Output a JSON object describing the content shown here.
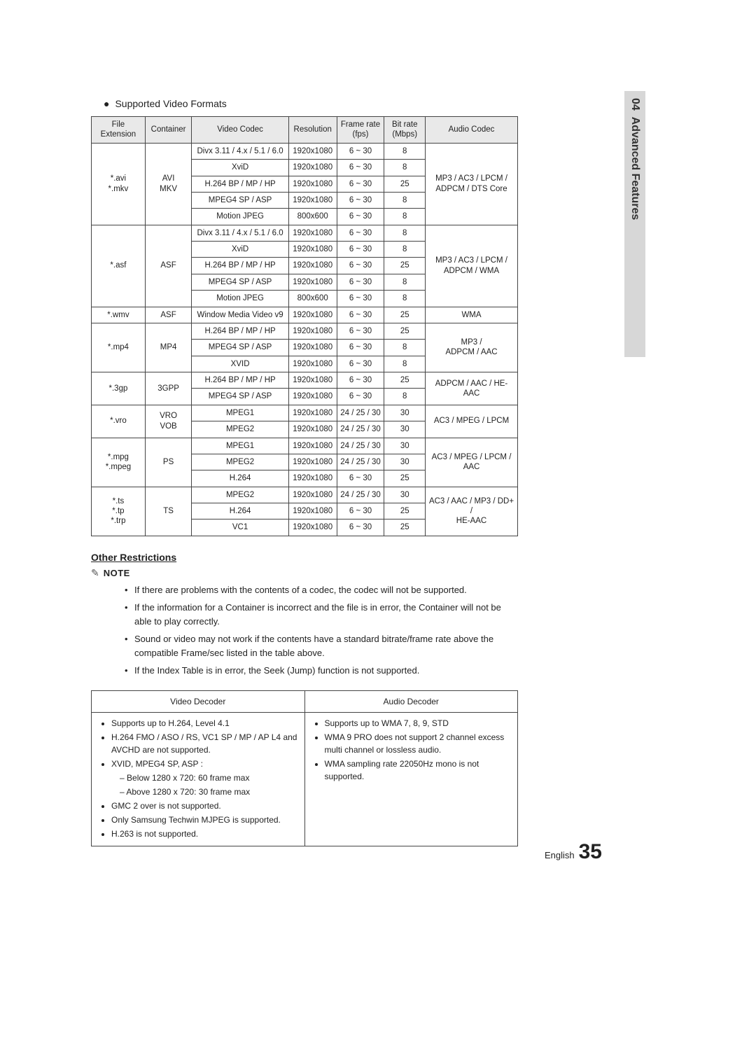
{
  "sidebar": {
    "chapter_num": "04",
    "chapter_title": "Advanced Features"
  },
  "section_title": "Supported Video Formats",
  "headers": [
    "File Extension",
    "Container",
    "Video Codec",
    "Resolution",
    "Frame rate (fps)",
    "Bit rate (Mbps)",
    "Audio Codec"
  ],
  "groups": [
    {
      "ext": "*.avi\n*.mkv",
      "cont": "AVI\nMKV",
      "rows": [
        {
          "vc": "Divx 3.11 / 4.x / 5.1 / 6.0",
          "res": "1920x1080",
          "fr": "6 ~ 30",
          "br": "8"
        },
        {
          "vc": "XviD",
          "res": "1920x1080",
          "fr": "6 ~ 30",
          "br": "8"
        },
        {
          "vc": "H.264 BP / MP / HP",
          "res": "1920x1080",
          "fr": "6 ~ 30",
          "br": "25"
        },
        {
          "vc": "MPEG4 SP / ASP",
          "res": "1920x1080",
          "fr": "6 ~ 30",
          "br": "8"
        },
        {
          "vc": "Motion JPEG",
          "res": "800x600",
          "fr": "6 ~ 30",
          "br": "8"
        }
      ],
      "audio": "MP3 / AC3 / LPCM / ADPCM / DTS Core"
    },
    {
      "ext": "*.asf",
      "cont": "ASF",
      "rows": [
        {
          "vc": "Divx 3.11 / 4.x / 5.1 / 6.0",
          "res": "1920x1080",
          "fr": "6 ~ 30",
          "br": "8"
        },
        {
          "vc": "XviD",
          "res": "1920x1080",
          "fr": "6 ~ 30",
          "br": "8"
        },
        {
          "vc": "H.264 BP / MP / HP",
          "res": "1920x1080",
          "fr": "6 ~ 30",
          "br": "25"
        },
        {
          "vc": "MPEG4 SP / ASP",
          "res": "1920x1080",
          "fr": "6 ~ 30",
          "br": "8"
        },
        {
          "vc": "Motion JPEG",
          "res": "800x600",
          "fr": "6 ~ 30",
          "br": "8"
        }
      ],
      "audio": "MP3 / AC3 / LPCM / ADPCM / WMA"
    },
    {
      "ext": "*.wmv",
      "cont": "ASF",
      "rows": [
        {
          "vc": "Window Media Video v9",
          "res": "1920x1080",
          "fr": "6 ~ 30",
          "br": "25"
        }
      ],
      "audio": "WMA"
    },
    {
      "ext": "*.mp4",
      "cont": "MP4",
      "rows": [
        {
          "vc": "H.264 BP / MP / HP",
          "res": "1920x1080",
          "fr": "6 ~ 30",
          "br": "25"
        },
        {
          "vc": "MPEG4 SP / ASP",
          "res": "1920x1080",
          "fr": "6 ~ 30",
          "br": "8"
        },
        {
          "vc": "XVID",
          "res": "1920x1080",
          "fr": "6 ~ 30",
          "br": "8"
        }
      ],
      "audio": "MP3 / ADPCM / AAC"
    },
    {
      "ext": "*.3gp",
      "cont": "3GPP",
      "rows": [
        {
          "vc": "H.264 BP / MP / HP",
          "res": "1920x1080",
          "fr": "6 ~ 30",
          "br": "25"
        },
        {
          "vc": "MPEG4 SP / ASP",
          "res": "1920x1080",
          "fr": "6 ~ 30",
          "br": "8"
        }
      ],
      "audio": "ADPCM / AAC / HE-AAC"
    },
    {
      "ext": "*.vro",
      "cont": "VRO\nVOB",
      "rows": [
        {
          "vc": "MPEG1",
          "res": "1920x1080",
          "fr": "24 / 25 / 30",
          "br": "30"
        },
        {
          "vc": "MPEG2",
          "res": "1920x1080",
          "fr": "24 / 25 / 30",
          "br": "30"
        }
      ],
      "audio": "AC3 / MPEG / LPCM"
    },
    {
      "ext": "*.mpg\n*.mpeg",
      "cont": "PS",
      "rows": [
        {
          "vc": "MPEG1",
          "res": "1920x1080",
          "fr": "24 / 25 / 30",
          "br": "30"
        },
        {
          "vc": "MPEG2",
          "res": "1920x1080",
          "fr": "24 / 25 / 30",
          "br": "30"
        },
        {
          "vc": "H.264",
          "res": "1920x1080",
          "fr": "6 ~ 30",
          "br": "25"
        }
      ],
      "audio": "AC3 / MPEG / LPCM / AAC"
    },
    {
      "ext": "*.ts\n*.tp\n*.trp",
      "cont": "TS",
      "rows": [
        {
          "vc": "MPEG2",
          "res": "1920x1080",
          "fr": "24 / 25 / 30",
          "br": "30"
        },
        {
          "vc": "H.264",
          "res": "1920x1080",
          "fr": "6 ~ 30",
          "br": "25"
        },
        {
          "vc": "VC1",
          "res": "1920x1080",
          "fr": "6 ~ 30",
          "br": "25"
        }
      ],
      "audio": "AC3 / AAC / MP3 / DD+ / HE-AAC"
    }
  ],
  "other_restrictions_title": "Other Restrictions",
  "note_label": "NOTE",
  "notes": [
    "If there are problems with the contents of a codec, the codec will not be supported.",
    "If the information for a Container is incorrect and the file is in error, the Container will not be able to play correctly.",
    "Sound or video may not work if the contents have a standard bitrate/frame rate above the compatible Frame/sec listed in the table above.",
    "If the Index Table is in error, the Seek (Jump) function is not supported."
  ],
  "decoder_headers": [
    "Video Decoder",
    "Audio Decoder"
  ],
  "video_decoder": {
    "items": [
      "Supports up to H.264, Level 4.1",
      "H.264 FMO / ASO / RS, VC1 SP / MP / AP L4 and AVCHD are not supported.",
      "XVID, MPEG4 SP, ASP :",
      "GMC 2 over is not supported.",
      "Only Samsung Techwin MJPEG is supported.",
      "H.263 is not supported."
    ],
    "sub": [
      "Below 1280 x 720: 60 frame max",
      "Above 1280 x 720: 30 frame max"
    ]
  },
  "audio_decoder": {
    "items": [
      "Supports up to WMA 7, 8, 9, STD",
      "WMA 9 PRO does not support 2 channel excess multi channel or lossless audio.",
      "WMA sampling rate 22050Hz mono is not supported."
    ]
  },
  "footer": {
    "lang": "English",
    "page": "35"
  }
}
